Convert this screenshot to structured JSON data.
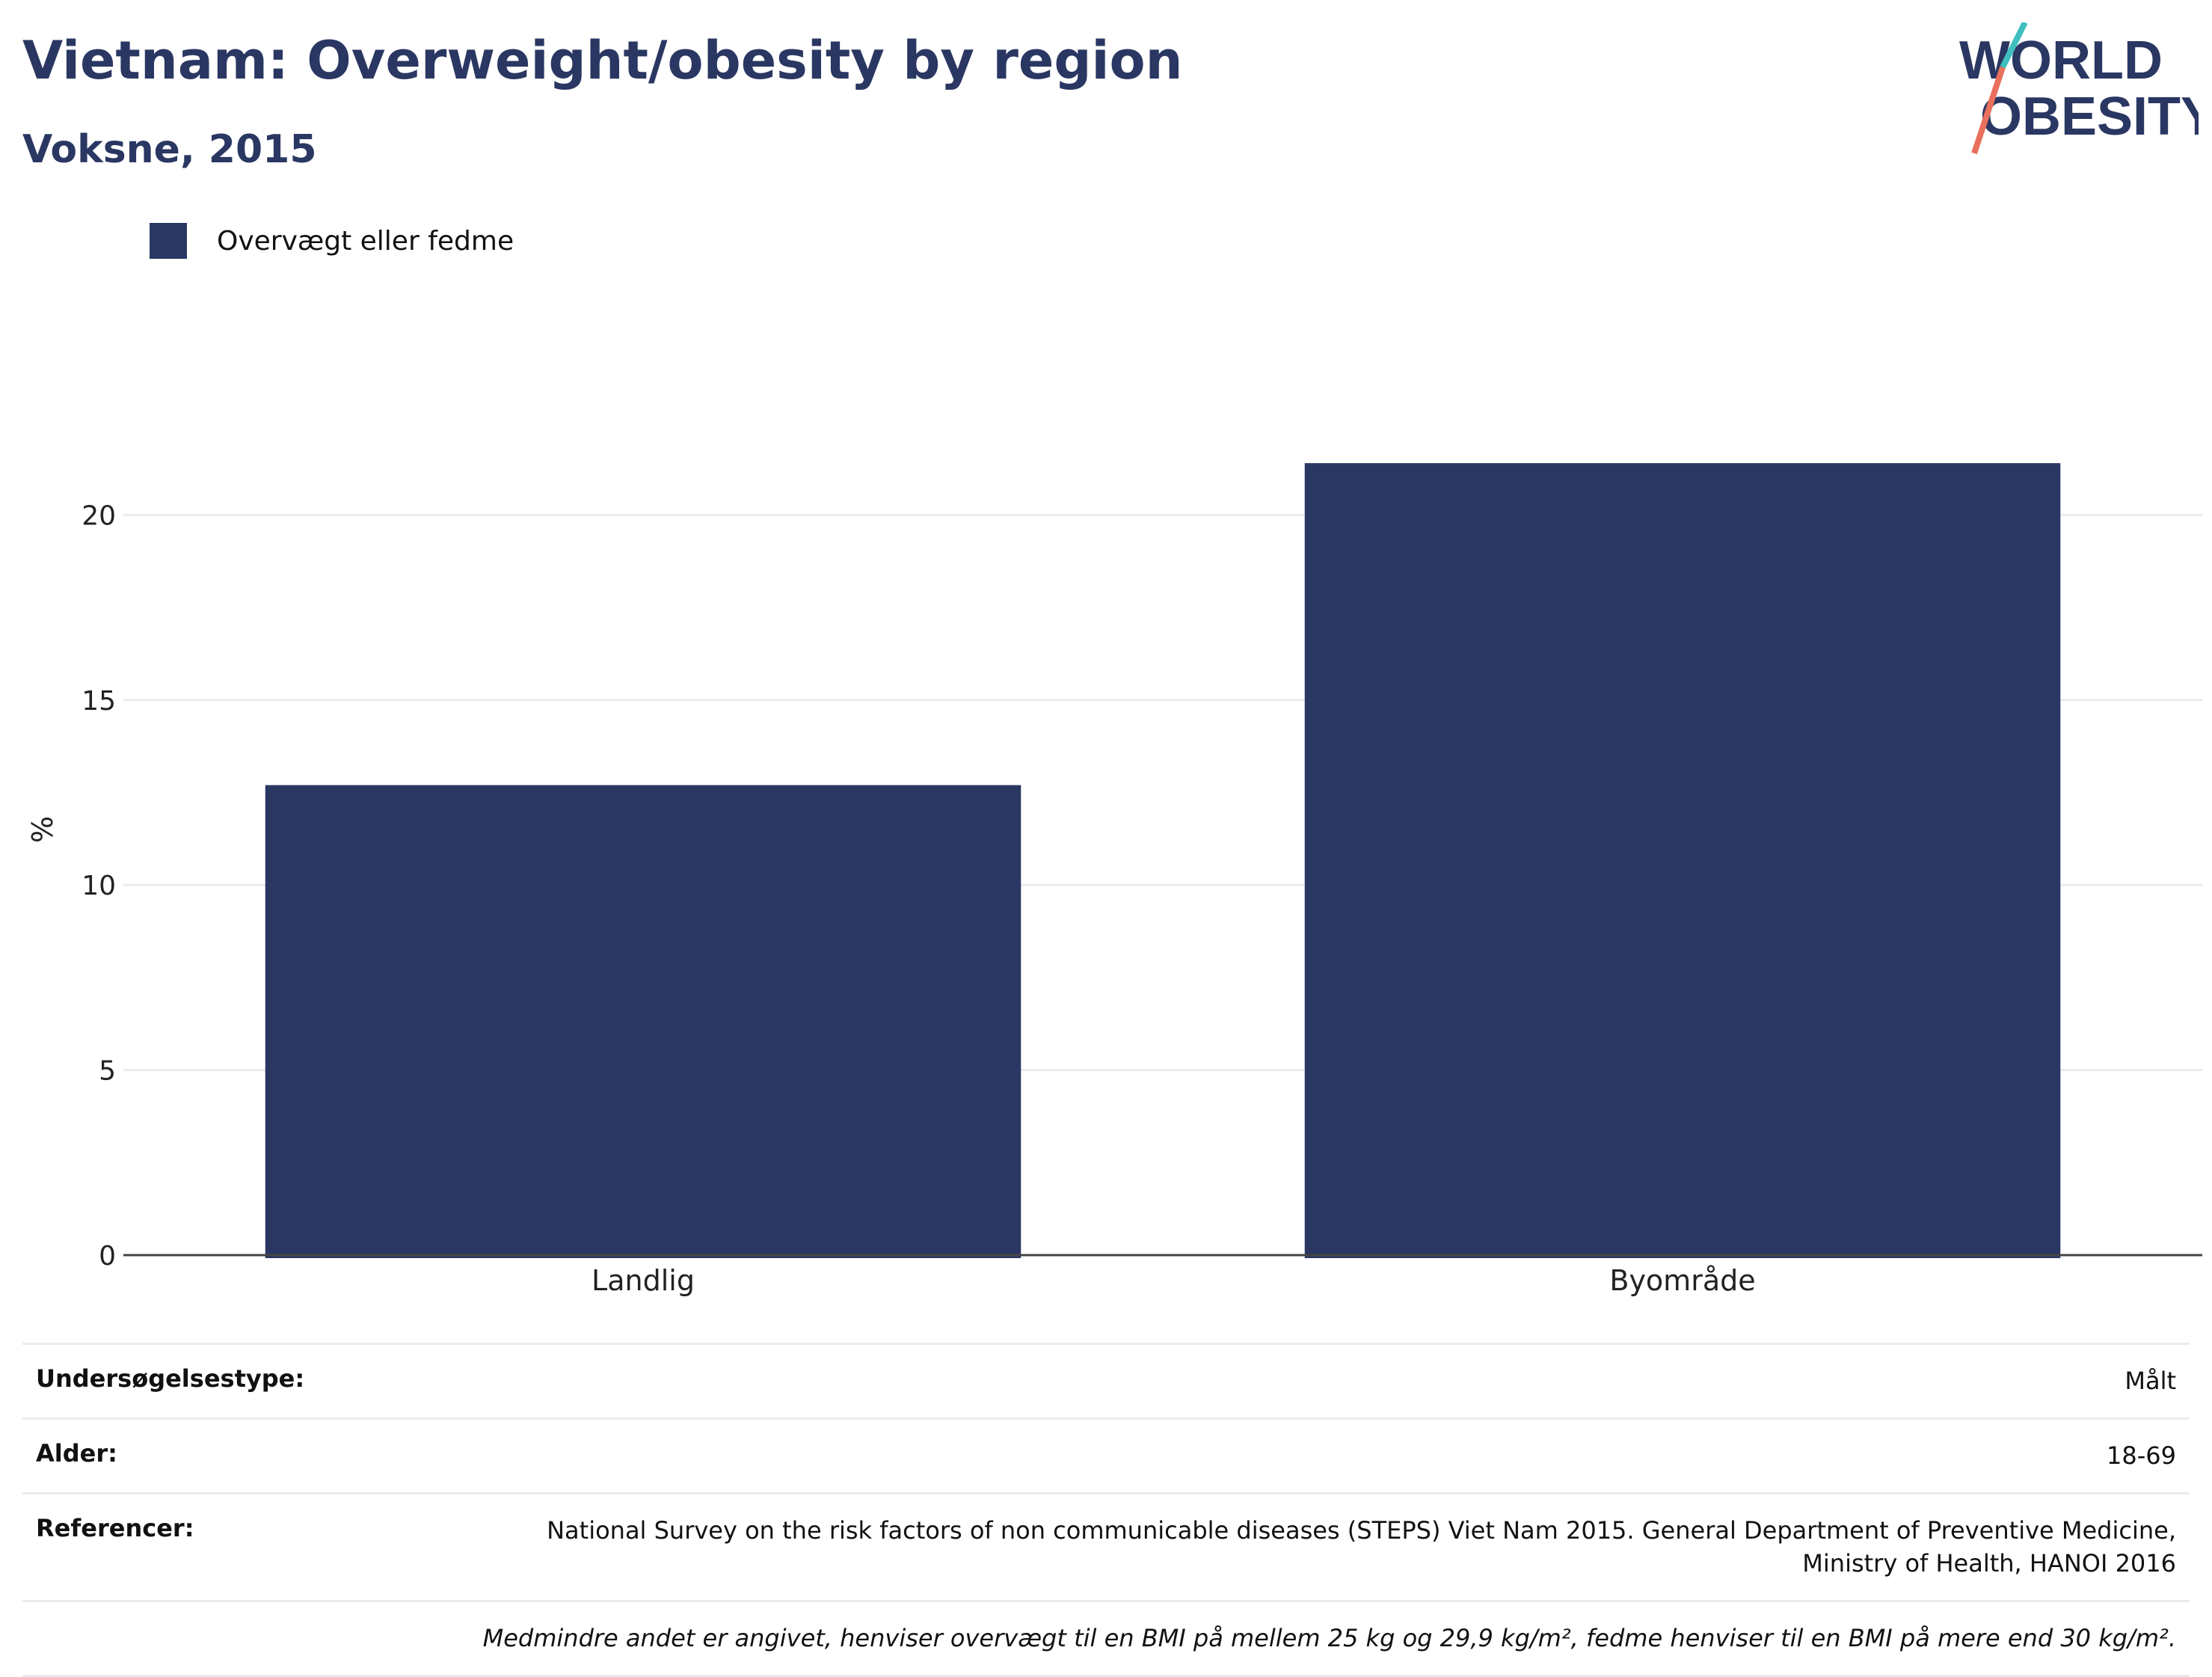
{
  "header": {
    "title": "Vietnam: Overweight/obesity by region",
    "subtitle": "Voksne, 2015"
  },
  "logo": {
    "line1": "WORLD",
    "line2": "OBESITY"
  },
  "chart_data": {
    "type": "bar",
    "categories": [
      "Landlig",
      "Byområde"
    ],
    "series": [
      {
        "name": "Overvægt eller fedme",
        "values": [
          12.7,
          21.4
        ],
        "color": "#2a3762"
      }
    ],
    "ylabel": "%",
    "ylim": [
      0,
      23
    ],
    "yticks": [
      0,
      5,
      10,
      15,
      20
    ],
    "grid": true,
    "legend": "top-left"
  },
  "info": {
    "survey_type": {
      "label": "Undersøgelsestype:",
      "value": "Målt"
    },
    "age": {
      "label": "Alder:",
      "value": "18-69"
    },
    "references": {
      "label": "Referencer:",
      "value": "National Survey on the risk factors of non communicable diseases (STEPS) Viet Nam 2015. General Department of Preventive Medicine, Ministry of Health, HANOI 2016"
    },
    "note": "Medmindre andet er angivet, henviser overvægt til en BMI på mellem 25 kg og 29,9 kg/m², fedme henviser til en BMI på mere end 30 kg/m²."
  },
  "colors": {
    "brand": "#2a3762",
    "logo_teal": "#3fbfbf",
    "logo_coral": "#e8705c",
    "grid": "#e8ecef"
  }
}
